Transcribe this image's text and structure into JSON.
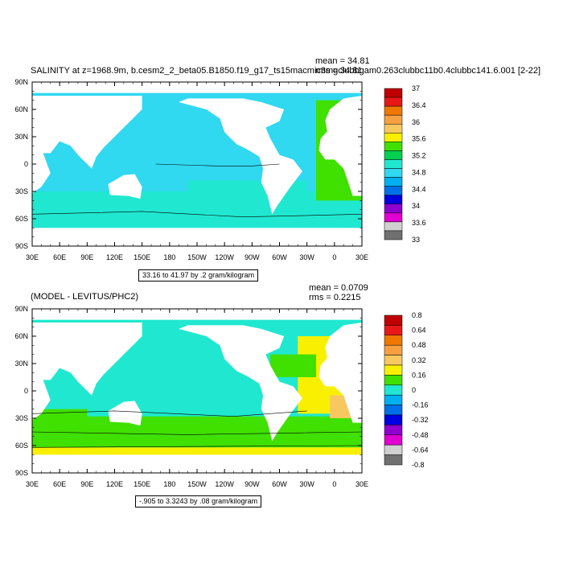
{
  "panels": [
    {
      "title": "SALINITY at z=1968.9m, b.cesm2_2_beta05.B1850.f19_g17_ts15macmic3mgclubbgam0.263clubbc11b0.4clubbc141.6.001 [2-22]",
      "mean": "mean = 34.81",
      "rms": "rms = 34.81",
      "range": "33.16 to 41.97 by .2 gram/kilogram",
      "colorbar": [
        "37",
        "36.4",
        "36",
        "35.6",
        "35.2",
        "34.8",
        "34.4",
        "34",
        "33.6",
        "33"
      ],
      "colors": [
        "#c00000",
        "#e81818",
        "#f07800",
        "#f8a040",
        "#f8c860",
        "#f8f000",
        "#40e000",
        "#00d050",
        "#20e8d0",
        "#30d8f0",
        "#00b0f0",
        "#0070e8",
        "#0000e0",
        "#9000d0",
        "#e000d0",
        "#d0d0d0",
        "#707070"
      ]
    },
    {
      "title": "(MODEL - LEVITUS/PHC2)",
      "mean": "mean = 0.0709",
      "rms": "rms = 0.2215",
      "range": "-.905 to 3.3243 by .08 gram/kilogram",
      "colorbar": [
        "0.8",
        "0.64",
        "0.48",
        "0.32",
        "0.16",
        "0",
        "-0.16",
        "-0.32",
        "-0.48",
        "-0.64",
        "-0.8"
      ],
      "colors": [
        "#c00000",
        "#e81818",
        "#f07800",
        "#f8a040",
        "#f8c860",
        "#f8f000",
        "#40e000",
        "#20e8d0",
        "#00b0f0",
        "#0070e8",
        "#0000e0",
        "#9000d0",
        "#e000d0",
        "#d0d0d0",
        "#707070"
      ]
    }
  ],
  "lon_ticks": [
    "30E",
    "60E",
    "90E",
    "120E",
    "150E",
    "180",
    "150W",
    "120W",
    "90W",
    "60W",
    "30W",
    "0",
    "30E"
  ],
  "lat_ticks": [
    "90N",
    "60N",
    "30N",
    "0",
    "30S",
    "60S",
    "90S"
  ]
}
